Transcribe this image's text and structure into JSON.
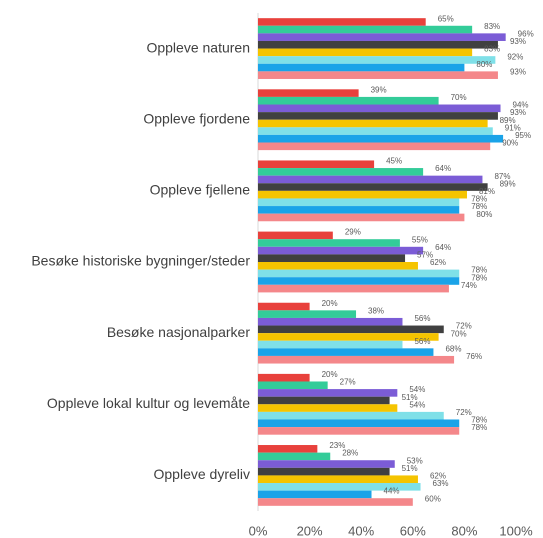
{
  "chart_data": {
    "type": "bar",
    "orientation": "horizontal",
    "categories": [
      "Oppleve naturen",
      "Oppleve fjordene",
      "Oppleve fjellene",
      "Besøke historiske bygninger/steder",
      "Besøke nasjonalparker",
      "Oppleve lokal kultur og levemåte",
      "Oppleve dyreliv"
    ],
    "series": [
      {
        "color": "#e8413c",
        "values": [
          65,
          39,
          45,
          29,
          20,
          20,
          23
        ],
        "value_labels": [
          "65%",
          "39%",
          "45%",
          "29%",
          "20%",
          "20%",
          "23%"
        ]
      },
      {
        "color": "#33cc99",
        "values": [
          83,
          70,
          64,
          55,
          38,
          27,
          28
        ],
        "value_labels": [
          "83%",
          "70%",
          "64%",
          "55%",
          "38%",
          "27%",
          "28%"
        ]
      },
      {
        "color": "#7b5cd6",
        "values": [
          96,
          94,
          87,
          64,
          56,
          54,
          53
        ],
        "value_labels": [
          "96%",
          "94%",
          "87%",
          "64%",
          "56%",
          "54%",
          "53%"
        ]
      },
      {
        "color": "#404040",
        "values": [
          93,
          93,
          89,
          57,
          72,
          51,
          51
        ],
        "value_labels": [
          "93%",
          "93%",
          "89%",
          "57%",
          "72%",
          "51%",
          "51%"
        ]
      },
      {
        "color": "#f5c400",
        "values": [
          83,
          89,
          81,
          62,
          70,
          54,
          62
        ],
        "value_labels": [
          "83%",
          "89%",
          "81%",
          "62%",
          "70%",
          "54%",
          "62%"
        ]
      },
      {
        "color": "#7fe0e8",
        "values": [
          92,
          91,
          78,
          78,
          56,
          72,
          63
        ],
        "value_labels": [
          "92%",
          "91%",
          "78%",
          "78%",
          "56%",
          "72%",
          "63%"
        ]
      },
      {
        "color": "#1aa3e8",
        "values": [
          80,
          95,
          78,
          78,
          68,
          78,
          44
        ],
        "value_labels": [
          "80%",
          "95%",
          "78%",
          "78%",
          "68%",
          "78%",
          "44%"
        ]
      },
      {
        "color": "#f4878a",
        "values": [
          93,
          90,
          80,
          74,
          76,
          78,
          60
        ],
        "value_labels": [
          "93%",
          "90%",
          "80%",
          "74%",
          "76%",
          "78%",
          "60%"
        ]
      }
    ],
    "xlim": [
      0,
      100
    ],
    "xticks": [
      {
        "value": 0,
        "label": "0%"
      },
      {
        "value": 20,
        "label": "20%"
      },
      {
        "value": 40,
        "label": "40%"
      },
      {
        "value": 60,
        "label": "60%"
      },
      {
        "value": 80,
        "label": "80%"
      },
      {
        "value": 100,
        "label": "100%"
      }
    ]
  }
}
